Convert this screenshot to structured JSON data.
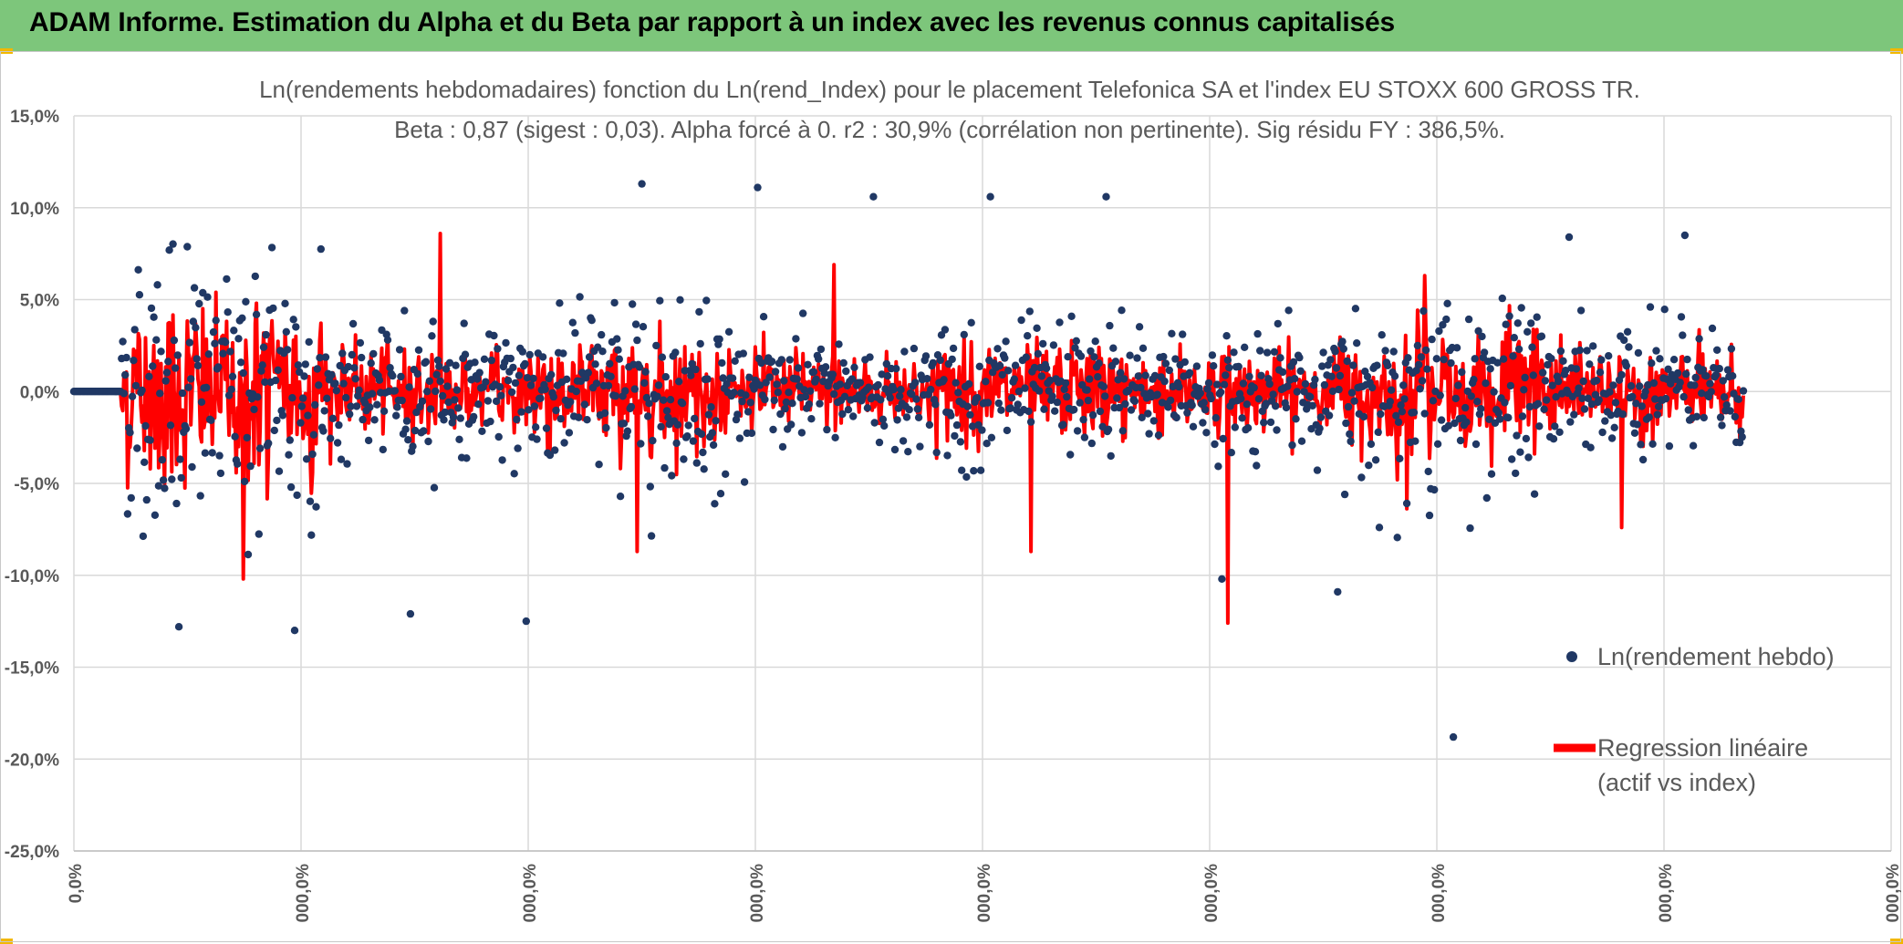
{
  "header": {
    "title": "ADAM Informe. Estimation du Alpha et du Beta par rapport à un index avec les revenus connus capitalisés"
  },
  "colors": {
    "header_bg": "#7dc67b",
    "scatter": "#203864",
    "regression": "#ff0000",
    "grid": "#d9d9d9",
    "text": "#595959"
  },
  "chart_data": {
    "type": "scatter",
    "title": [
      "Ln(rendements hebdomadaires) fonction du Ln(rend_Index) pour le placement Telefonica SA et l'index EU STOXX 600 GROSS TR.",
      "Beta : 0,87 (sigest : 0,03). Alpha forcé à 0. r2 : 30,9% (corrélation non pertinente). Sig résidu FY : 386,5%."
    ],
    "ylim": [
      -0.25,
      0.15
    ],
    "y_ticks": [
      0.15,
      0.1,
      0.05,
      0.0,
      -0.05,
      -0.1,
      -0.15,
      -0.2,
      -0.25
    ],
    "y_tick_labels": [
      "15,0%",
      "10,0%",
      "5,0%",
      "0,0%",
      "-5,0%",
      "-10,0%",
      "-15,0%",
      "-20,0%",
      "-25,0%"
    ],
    "x_tick_labels": [
      "0,0%",
      "000,0%",
      "000,0%",
      "000,0%",
      "000,0%",
      "000,0%",
      "000,0%",
      "000,0%",
      "000,0%"
    ],
    "grid": true,
    "legend": {
      "placement": "bottom-right",
      "scatter_label": "Ln(rendement hebdo)",
      "line_label_1": "Regression linéaire",
      "line_label_2": "(actif vs index)"
    },
    "series": [
      {
        "name": "Ln(rendement hebdo)",
        "kind": "scatter",
        "n_points": 1400,
        "leading_zero_points": 40,
        "approx_sd_by_segment": [
          0.045,
          0.02,
          0.028,
          0.018,
          0.022,
          0.02,
          0.03,
          0.02
        ],
        "notable_points": [
          -0.128,
          -0.13,
          -0.121,
          -0.125,
          0.113,
          0.111,
          0.106,
          0.106,
          0.106,
          -0.102,
          -0.109,
          -0.188,
          0.084,
          0.085
        ]
      },
      {
        "name": "Regression linéaire (actif vs index)",
        "kind": "line",
        "beta": 0.87,
        "alpha": 0,
        "r2": 0.309,
        "notable_values": [
          -0.102,
          0.086,
          -0.087,
          0.069,
          -0.087,
          -0.126,
          0.063,
          -0.074
        ]
      }
    ]
  }
}
